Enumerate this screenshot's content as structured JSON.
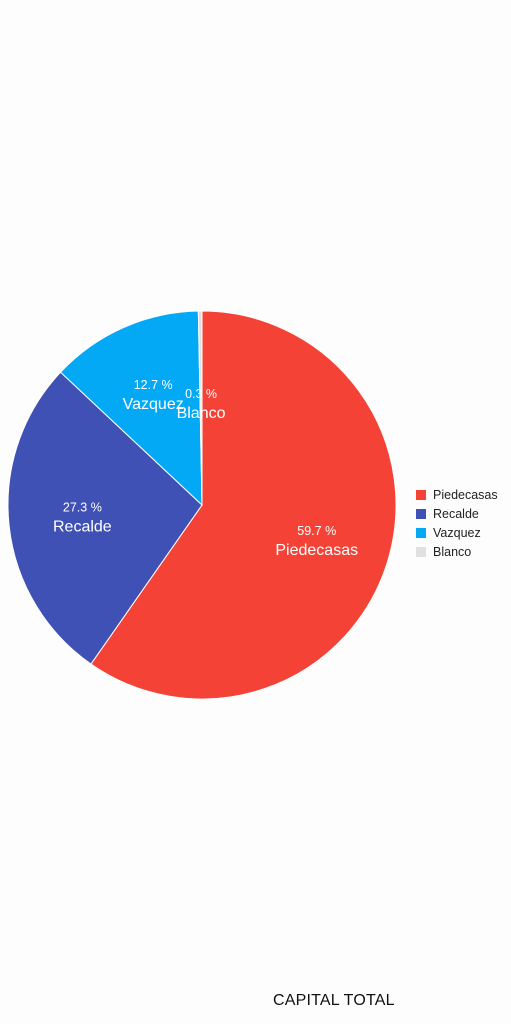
{
  "chart_data": {
    "type": "pie",
    "title": "CAPITAL TOTAL",
    "slices": [
      {
        "name": "Piedecasas",
        "value": 59.7,
        "label": "59.7 %",
        "color": "#f44336"
      },
      {
        "name": "Recalde",
        "value": 27.3,
        "label": "27.3 %",
        "color": "#3f51b5"
      },
      {
        "name": "Vazquez",
        "value": 12.7,
        "label": "12.7 %",
        "color": "#03a9f4"
      },
      {
        "name": "Blanco",
        "value": 0.3,
        "label": "0.3 %",
        "color": "#e0e0e0"
      }
    ],
    "legend_position": "right"
  }
}
